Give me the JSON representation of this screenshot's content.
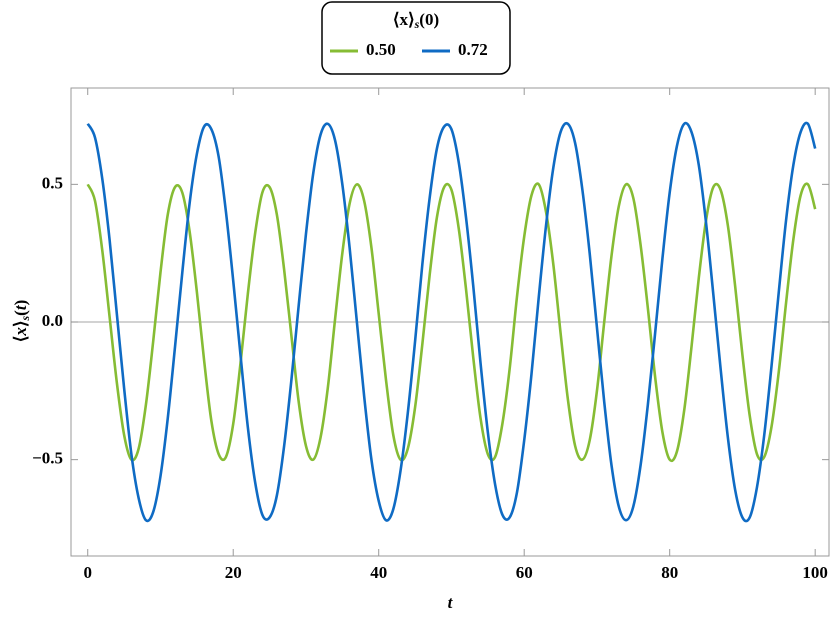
{
  "chart_data": {
    "type": "line",
    "legend_title": [
      "⟨x⟩",
      "s",
      "(0)"
    ],
    "ylabel": [
      "⟨",
      "x",
      "⟩",
      "s",
      "(",
      "t",
      ")"
    ],
    "xlabel": "t",
    "xlim": [
      -2.3,
      101.9
    ],
    "ylim": [
      -0.85,
      0.85
    ],
    "xticks": [
      0,
      20,
      40,
      60,
      80,
      100
    ],
    "yticks": [
      {
        "value": -0.5,
        "label": "−0.5"
      },
      {
        "value": 0,
        "label": "0.0"
      },
      0.5
    ],
    "legend": "top",
    "x": [
      0,
      1,
      2,
      3,
      4,
      5,
      6,
      7,
      8,
      9,
      10,
      11,
      12,
      13,
      14,
      15,
      16,
      17,
      18,
      19,
      20,
      21,
      22,
      23,
      24,
      25,
      26,
      27,
      28,
      29,
      30,
      31,
      32,
      33,
      34,
      35,
      36,
      37,
      38,
      39,
      40,
      41,
      42,
      43,
      44,
      45,
      46,
      47,
      48,
      49,
      50,
      51,
      52,
      53,
      54,
      55,
      56,
      57,
      58,
      59,
      60,
      61,
      62,
      63,
      64,
      65,
      66,
      67,
      68,
      69,
      70,
      71,
      72,
      73,
      74,
      75,
      76,
      77,
      78,
      79,
      80,
      81,
      82,
      83,
      84,
      85,
      86,
      87,
      88,
      89,
      90,
      91,
      92,
      93,
      94,
      95,
      96,
      97,
      98,
      99,
      100
    ],
    "series": [
      {
        "name": "0.50",
        "color": "#86bc34",
        "values": [
          0.5,
          0.44,
          0.26,
          0.02,
          -0.22,
          -0.41,
          -0.5,
          -0.46,
          -0.3,
          -0.07,
          0.18,
          0.39,
          0.49,
          0.47,
          0.33,
          0.11,
          -0.14,
          -0.36,
          -0.48,
          -0.49,
          -0.37,
          -0.15,
          0.1,
          0.32,
          0.47,
          0.49,
          0.39,
          0.19,
          -0.05,
          -0.29,
          -0.45,
          -0.5,
          -0.42,
          -0.24,
          0.01,
          0.25,
          0.43,
          0.5,
          0.44,
          0.27,
          0.03,
          -0.21,
          -0.41,
          -0.5,
          -0.46,
          -0.31,
          -0.08,
          0.17,
          0.38,
          0.49,
          0.48,
          0.34,
          0.12,
          -0.13,
          -0.35,
          -0.48,
          -0.49,
          -0.37,
          -0.17,
          0.09,
          0.31,
          0.46,
          0.5,
          0.4,
          0.21,
          -0.04,
          -0.28,
          -0.45,
          -0.5,
          -0.43,
          -0.25,
          0.0,
          0.24,
          0.42,
          0.5,
          0.45,
          0.28,
          0.05,
          -0.2,
          -0.4,
          -0.5,
          -0.47,
          -0.32,
          -0.09,
          0.16,
          0.37,
          0.49,
          0.48,
          0.35,
          0.13,
          -0.12,
          -0.34,
          -0.48,
          -0.49,
          -0.38,
          -0.18,
          0.07,
          0.3,
          0.46,
          0.5,
          0.41
        ]
      },
      {
        "name": "0.72",
        "color": "#0f6bc4",
        "values": [
          0.72,
          0.67,
          0.52,
          0.3,
          0.03,
          -0.24,
          -0.48,
          -0.64,
          -0.72,
          -0.69,
          -0.56,
          -0.35,
          -0.09,
          0.18,
          0.43,
          0.61,
          0.71,
          0.7,
          0.6,
          0.4,
          0.15,
          -0.12,
          -0.38,
          -0.58,
          -0.7,
          -0.71,
          -0.63,
          -0.45,
          -0.21,
          0.06,
          0.32,
          0.54,
          0.68,
          0.72,
          0.66,
          0.5,
          0.27,
          0.0,
          -0.27,
          -0.5,
          -0.65,
          -0.72,
          -0.68,
          -0.54,
          -0.33,
          -0.07,
          0.21,
          0.45,
          0.63,
          0.71,
          0.7,
          0.58,
          0.38,
          0.13,
          -0.15,
          -0.4,
          -0.59,
          -0.7,
          -0.71,
          -0.62,
          -0.43,
          -0.19,
          0.09,
          0.35,
          0.56,
          0.69,
          0.72,
          0.65,
          0.48,
          0.25,
          -0.02,
          -0.29,
          -0.52,
          -0.67,
          -0.72,
          -0.67,
          -0.52,
          -0.3,
          -0.04,
          0.23,
          0.47,
          0.64,
          0.72,
          0.69,
          0.57,
          0.36,
          0.1,
          -0.17,
          -0.42,
          -0.61,
          -0.71,
          -0.71,
          -0.6,
          -0.41,
          -0.16,
          0.11,
          0.37,
          0.57,
          0.69,
          0.72,
          0.63
        ]
      }
    ]
  }
}
